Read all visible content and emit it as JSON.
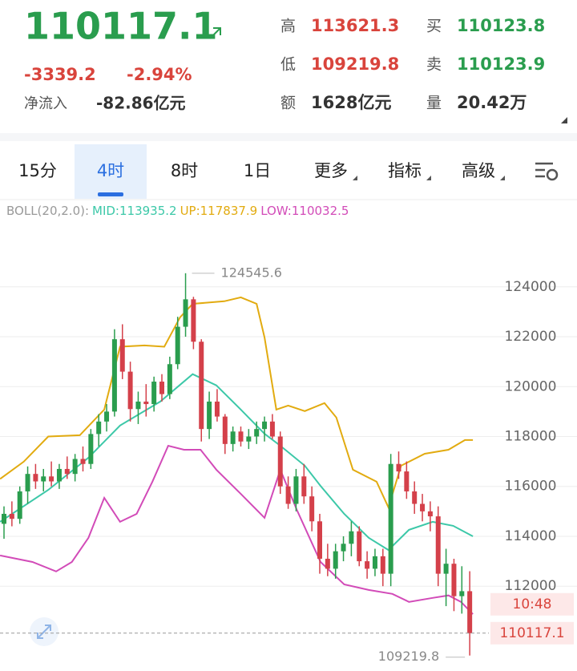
{
  "header": {
    "price": "110117.1",
    "change": "-3339.2",
    "change_pct": "-2.94%",
    "net_inflow_label": "净流入",
    "net_inflow": "-82.86亿元",
    "stats": [
      {
        "label": "高",
        "value": "113621.3",
        "tone": "down"
      },
      {
        "label": "买",
        "value": "110123.8",
        "tone": "up"
      },
      {
        "label": "低",
        "value": "109219.8",
        "tone": "down"
      },
      {
        "label": "卖",
        "value": "110123.9",
        "tone": "up"
      },
      {
        "label": "额",
        "value": "1628亿元",
        "tone": "plain"
      },
      {
        "label": "量",
        "value": "20.42万",
        "tone": "plain"
      }
    ]
  },
  "tabs": [
    "15分",
    "4时",
    "8时",
    "1日",
    "更多",
    "指标",
    "高级"
  ],
  "selected_tab": 1,
  "chart_data": {
    "type": "candlestick",
    "indicator": {
      "label": "BOLL(20,2.0):",
      "mid": "MID:113935.2",
      "up": "UP:117837.9",
      "low": "LOW:110032.5"
    },
    "up_color": "#2a9d4e",
    "down_color": "#d4404a",
    "open": [
      114500,
      114900,
      114700,
      115800,
      116500,
      116200,
      116400,
      116200,
      116700,
      116500,
      117100,
      116900,
      118100,
      118600,
      119000,
      121900,
      120600,
      119100,
      119400,
      119300,
      120200,
      119700,
      120900,
      122400,
      123500,
      121800,
      118300,
      119400,
      118800,
      117700,
      118200,
      117800,
      118000,
      118300,
      118600,
      118000,
      116000,
      115300,
      116400,
      115600,
      114600,
      113100,
      112700,
      113400,
      113700,
      114200,
      113000,
      112700,
      113200,
      112500,
      116900,
      116600,
      115800,
      115300,
      115000,
      114800,
      112500,
      112900,
      111600,
      111800
    ],
    "high": [
      115200,
      115400,
      116000,
      116800,
      116900,
      116700,
      117000,
      116900,
      117200,
      117300,
      117600,
      118300,
      118900,
      119300,
      122300,
      122500,
      121000,
      119800,
      120100,
      120400,
      120500,
      121200,
      122800,
      124545.6,
      123600,
      121900,
      119800,
      119900,
      118900,
      118400,
      118400,
      118300,
      118600,
      118800,
      118900,
      118200,
      116400,
      116700,
      116900,
      116000,
      114900,
      113700,
      113700,
      114000,
      114600,
      114400,
      113400,
      113500,
      113500,
      117300,
      117400,
      117000,
      116200,
      115700,
      115400,
      115200,
      113500,
      113100,
      112800,
      112600
    ],
    "low": [
      113900,
      114400,
      114500,
      115300,
      115900,
      115800,
      116000,
      115900,
      116300,
      116200,
      116600,
      116700,
      117600,
      118200,
      118800,
      120300,
      118600,
      118500,
      118800,
      119000,
      119400,
      119500,
      120700,
      122000,
      121500,
      117800,
      117900,
      118600,
      117300,
      117400,
      117600,
      117500,
      117700,
      117800,
      117900,
      115700,
      115100,
      115000,
      115300,
      114200,
      112500,
      112400,
      112300,
      113000,
      113200,
      112800,
      112300,
      112400,
      112000,
      112000,
      116300,
      115500,
      114900,
      114600,
      114200,
      112000,
      111200,
      111000,
      110900,
      109219.8
    ],
    "close": [
      114900,
      114700,
      115800,
      116500,
      116200,
      116400,
      116200,
      116700,
      116500,
      117100,
      116900,
      118100,
      118600,
      119000,
      121900,
      120600,
      119100,
      119400,
      119300,
      120200,
      119700,
      120900,
      122400,
      123500,
      121800,
      118300,
      119400,
      118800,
      117700,
      118200,
      117800,
      118000,
      118300,
      118600,
      118000,
      116000,
      115300,
      116400,
      115600,
      114600,
      113100,
      112700,
      113400,
      113700,
      114200,
      113000,
      112700,
      113200,
      112500,
      116900,
      116600,
      115800,
      115300,
      115000,
      114800,
      112500,
      112900,
      111600,
      111800,
      110117.1
    ],
    "lines": [
      {
        "name": "UP",
        "color": "#e2ab10",
        "x": [
          -0.5,
          2.5,
          5.6,
          9.6,
          12.7,
          14.7,
          17.8,
          20.3,
          22.3,
          23.9,
          27.9,
          30.0,
          32.0,
          33.0,
          34.5,
          36.0,
          38.1,
          40.6,
          42.1,
          44.2,
          47.2,
          48.7,
          50.3,
          53.3,
          56.3,
          58.4,
          59.4
        ],
        "values": [
          116300,
          116990,
          118000,
          118050,
          119080,
          121600,
          121650,
          121600,
          122780,
          123320,
          123420,
          123580,
          123320,
          121970,
          119080,
          119240,
          119020,
          119340,
          118760,
          116670,
          116190,
          115160,
          116830,
          117310,
          117470,
          117860,
          117860
        ]
      },
      {
        "name": "MID",
        "color": "#3cc8a8",
        "x": [
          -0.5,
          5.6,
          10.7,
          14.7,
          19.8,
          23.9,
          26.9,
          30.0,
          33.0,
          35.0,
          38.1,
          40.1,
          43.1,
          46.2,
          48.7,
          51.3,
          54.3,
          56.9,
          59.4
        ],
        "values": [
          114580,
          115860,
          117150,
          118440,
          119400,
          120500,
          120050,
          119080,
          118110,
          117630,
          116830,
          116020,
          114900,
          113940,
          113450,
          114260,
          114580,
          114420,
          114000
        ]
      },
      {
        "name": "LOW",
        "color": "#d24bb8",
        "x": [
          -0.5,
          3.6,
          6.6,
          8.6,
          10.7,
          12.7,
          14.7,
          16.8,
          18.8,
          20.8,
          22.8,
          24.9,
          26.9,
          30.0,
          33.0,
          35.0,
          37.1,
          40.1,
          43.1,
          46.2,
          49.2,
          51.3,
          54.3,
          56.3,
          57.9,
          59.4
        ],
        "values": [
          113230,
          112970,
          112590,
          112970,
          113940,
          115540,
          114580,
          114900,
          116190,
          117630,
          117470,
          117470,
          116670,
          115700,
          114740,
          116670,
          115060,
          112970,
          112070,
          111850,
          111690,
          111370,
          111530,
          111630,
          111370,
          110880
        ]
      }
    ],
    "ylim": [
      108600,
      126500
    ],
    "yticks": [
      112000,
      114000,
      116000,
      118000,
      120000,
      122000,
      124000
    ],
    "grid": true,
    "max_label": 124545.6,
    "min_label": 109219.8,
    "last_price": 110117.1,
    "countdown": "10:48"
  }
}
